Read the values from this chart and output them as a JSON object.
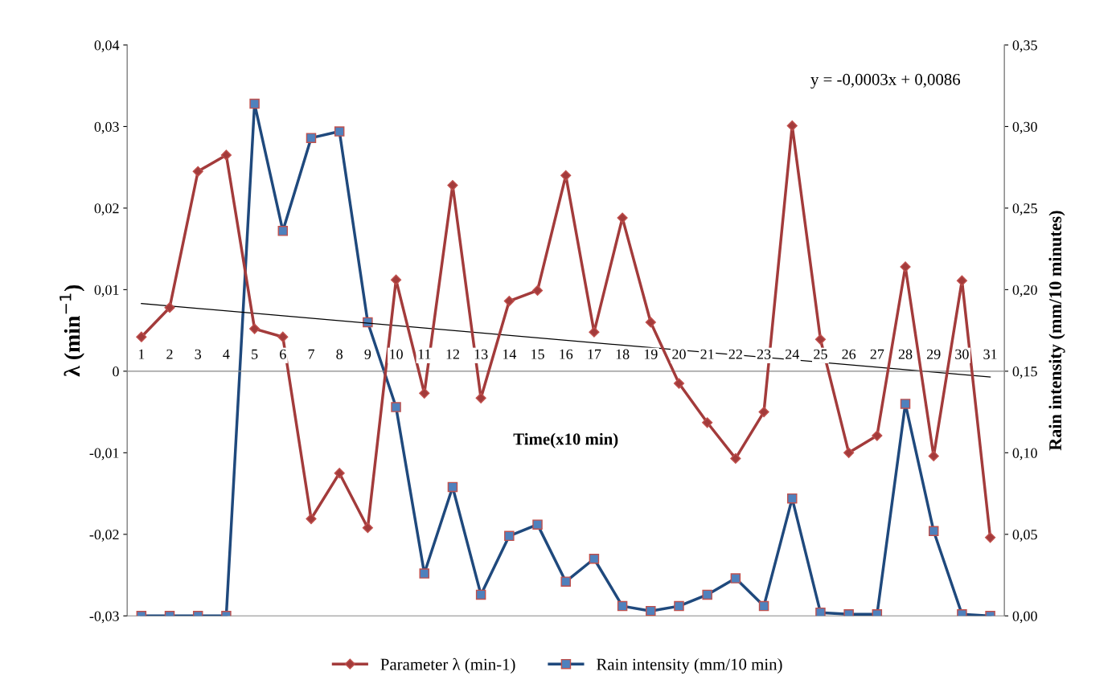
{
  "chart_data": {
    "type": "line",
    "xlabel": "Time(x10 min)",
    "ylabel": "λ (min$^{−1}$)",
    "y2label": "Rain intensity (mm/10 minutes)",
    "categories": [
      "1",
      "2",
      "3",
      "4",
      "5",
      "6",
      "7",
      "8",
      "9",
      "10",
      "11",
      "12",
      "13",
      "14",
      "15",
      "16",
      "17",
      "18",
      "19",
      "20",
      "21",
      "22",
      "23",
      "24",
      "25",
      "26",
      "27",
      "28",
      "29",
      "30",
      "31"
    ],
    "series": [
      {
        "name": "Parameter λ (min-1)",
        "color": "#a33b3b",
        "marker": "diamond",
        "values": [
          0.0042,
          0.0078,
          0.0245,
          0.0265,
          0.0052,
          0.0042,
          -0.0181,
          -0.0125,
          -0.0192,
          0.0112,
          -0.0027,
          0.0228,
          -0.0033,
          0.0086,
          0.0099,
          0.024,
          0.0048,
          0.0188,
          0.006,
          -0.0015,
          -0.0063,
          -0.0107,
          -0.005,
          0.0301,
          0.0039,
          -0.01,
          -0.0079,
          0.0128,
          -0.0104,
          0.0111,
          -0.0204
        ]
      },
      {
        "name": "Rain intensity (mm/10 min)",
        "color": "#1f497d",
        "marker": "square",
        "axis": "y2",
        "values": [
          0,
          0,
          0,
          0,
          0.314,
          0.236,
          0.293,
          0.297,
          0.18,
          0.128,
          0.026,
          0.079,
          0.013,
          0.049,
          0.056,
          0.021,
          0.035,
          0.006,
          0.003,
          0.006,
          0.013,
          0.023,
          0.006,
          0.072,
          0.002,
          0.001,
          0.001,
          0.13,
          0.052,
          0.001,
          0.0
        ]
      },
      {
        "color": "#000000",
        "marker": "none",
        "x": [
          "1",
          "31"
        ],
        "values": [
          0.0083,
          -0.0007
        ]
      }
    ],
    "ylim": [
      -0.03,
      0.04
    ],
    "yticks": [
      {
        "value": -0.03,
        "label": "-0,03"
      },
      {
        "value": -0.02,
        "label": "-0,02"
      },
      {
        "value": -0.01,
        "label": "-0,01"
      },
      {
        "value": 0,
        "label": "0"
      },
      {
        "value": 0.01,
        "label": "0,01"
      },
      {
        "value": 0.02,
        "label": "0,02"
      },
      {
        "value": 0.03,
        "label": "0,03"
      },
      {
        "value": 0.04,
        "label": "0,04"
      }
    ],
    "y2lim": [
      0,
      0.35
    ],
    "y2ticks": [
      {
        "value": 0,
        "label": "0,00"
      },
      {
        "value": 0.05,
        "label": "0,05"
      },
      {
        "value": 0.1,
        "label": "0,10"
      },
      {
        "value": 0.15,
        "label": "0,15"
      },
      {
        "value": 0.2,
        "label": "0,20"
      },
      {
        "value": 0.25,
        "label": "0,25"
      },
      {
        "value": 0.3,
        "label": "0,30"
      },
      {
        "value": 0.35,
        "label": "0,35"
      }
    ],
    "annotations": [
      "y = -0,0003x + 0,0086"
    ],
    "legend": "bottom",
    "grid": false
  }
}
